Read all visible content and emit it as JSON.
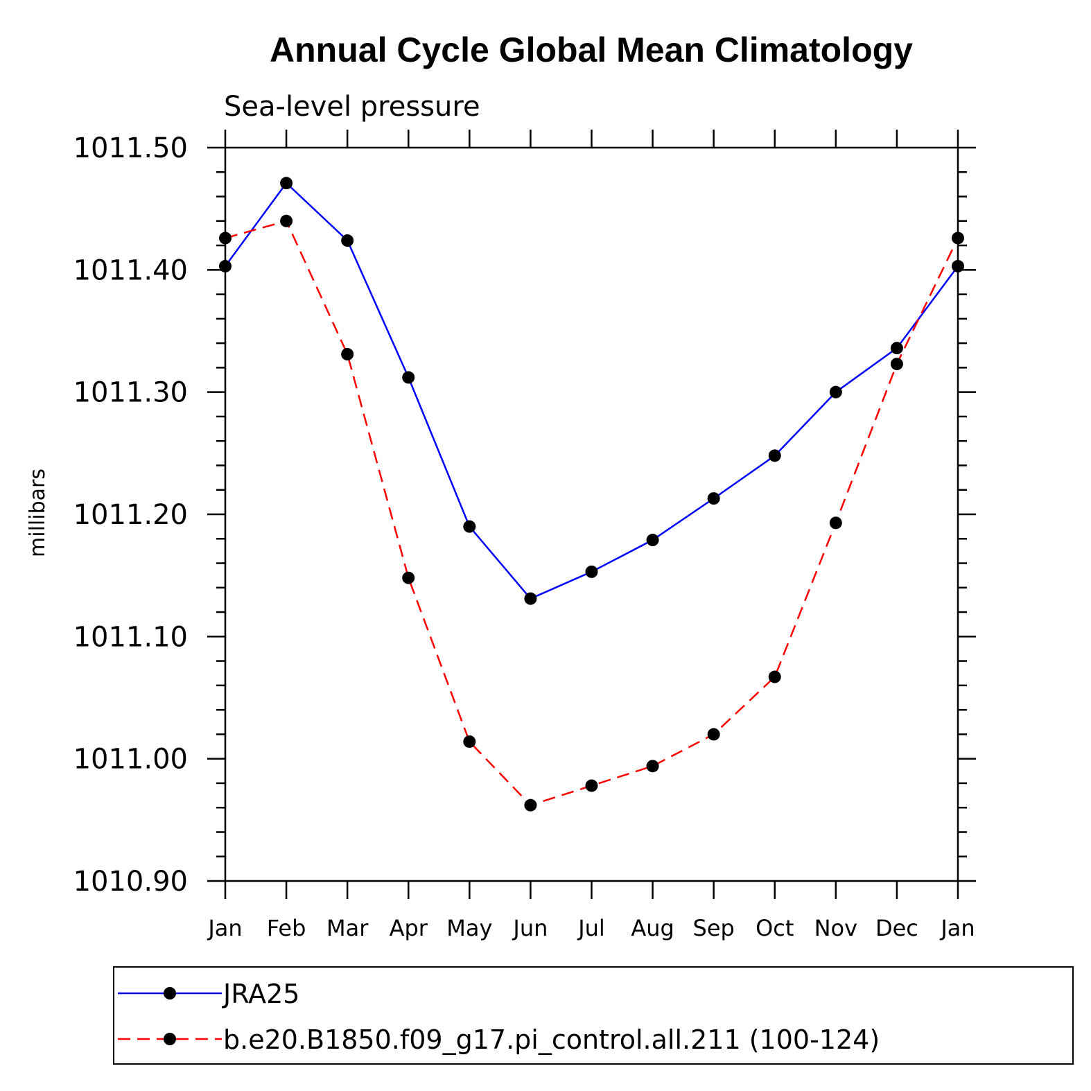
{
  "chart_data": {
    "type": "line",
    "title": "Annual Cycle Global Mean Climatology",
    "subtitle": "Sea-level pressure",
    "ylabel": "millibars",
    "ylim": [
      1010.9,
      1011.5
    ],
    "yticks": [
      1010.9,
      1011.0,
      1011.1,
      1011.2,
      1011.3,
      1011.4,
      1011.5
    ],
    "ytick_labels": [
      "1010.90",
      "1011.00",
      "1011.10",
      "1011.20",
      "1011.30",
      "1011.40",
      "1011.50"
    ],
    "categories": [
      "Jan",
      "Feb",
      "Mar",
      "Apr",
      "May",
      "Jun",
      "Jul",
      "Aug",
      "Sep",
      "Oct",
      "Nov",
      "Dec",
      "Jan"
    ],
    "legend_position": "bottom",
    "series": [
      {
        "name": "JRA25",
        "color": "#0000ff",
        "dashed": false,
        "values": [
          1011.403,
          1011.471,
          1011.424,
          1011.312,
          1011.19,
          1011.131,
          1011.153,
          1011.179,
          1011.213,
          1011.248,
          1011.3,
          1011.336,
          1011.403
        ]
      },
      {
        "name": "b.e20.B1850.f09_g17.pi_control.all.211 (100-124)",
        "color": "#ff0000",
        "dashed": true,
        "values": [
          1011.426,
          1011.44,
          1011.331,
          1011.148,
          1011.014,
          1010.962,
          1010.978,
          1010.994,
          1011.02,
          1011.067,
          1011.193,
          1011.323,
          1011.426
        ]
      }
    ]
  }
}
